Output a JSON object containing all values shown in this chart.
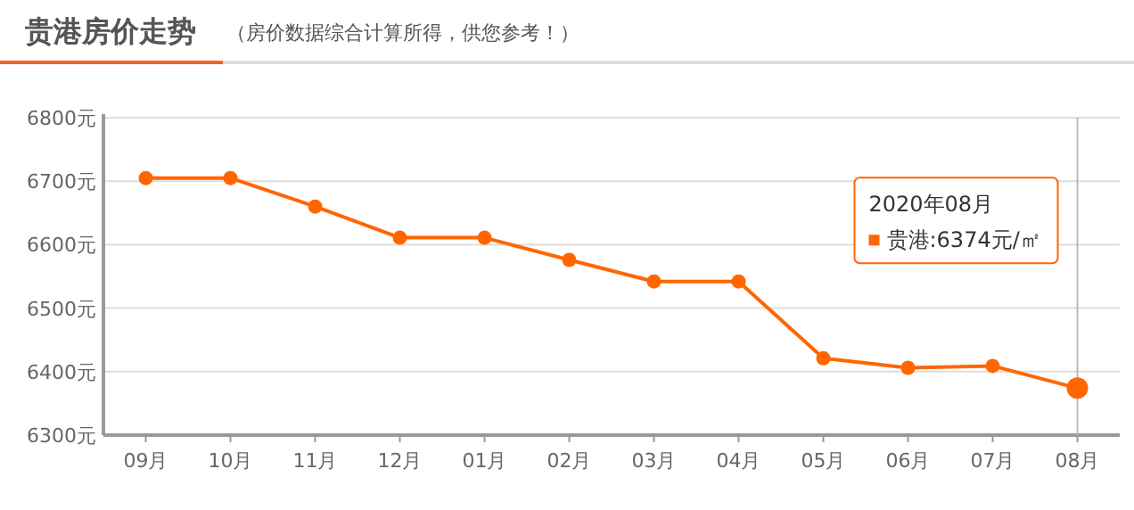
{
  "chart_data": {
    "type": "line",
    "title": "贵港房价走势",
    "subtitle": "（房价数据综合计算所得，供您参考！）",
    "categories": [
      "09月",
      "10月",
      "11月",
      "12月",
      "01月",
      "02月",
      "03月",
      "04月",
      "05月",
      "06月",
      "07月",
      "08月"
    ],
    "series": [
      {
        "color": "#ff6600",
        "values": [
          6705,
          6705,
          6660,
          6611,
          6611,
          6576,
          6542,
          6542,
          6421,
          6406,
          6409,
          6374
        ]
      }
    ],
    "ylim": [
      6300,
      6800
    ],
    "yticks": [
      {
        "value": 6300,
        "label": "6300元"
      },
      {
        "value": 6400,
        "label": "6400元"
      },
      {
        "value": 6500,
        "label": "6500元"
      },
      {
        "value": 6600,
        "label": "6600元"
      },
      {
        "value": 6700,
        "label": "6700元"
      },
      {
        "value": 6800,
        "label": "6800元"
      }
    ],
    "grid": "y",
    "marker": "circle",
    "line_style": "solid",
    "ref_lines": [
      {
        "axis": "x",
        "value": "08月",
        "color": "#bbbbbb"
      }
    ],
    "annotations": [
      "2020年08月",
      "贵港:6374元/㎡"
    ]
  }
}
